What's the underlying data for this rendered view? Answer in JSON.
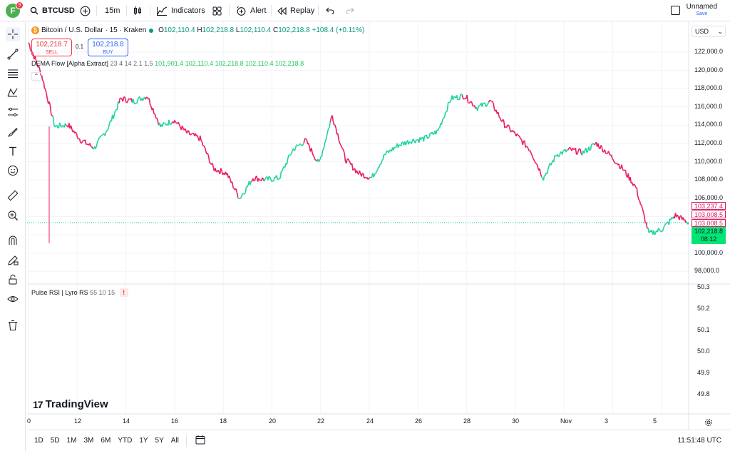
{
  "colors": {
    "bull": "#22d3a0",
    "bear": "#e91e63",
    "accent": "#2962ff",
    "current_price_bg": "#00e676",
    "sell": "#f23645"
  },
  "topbar": {
    "avatar_letter": "F",
    "avatar_badge": "9",
    "symbol": "BTCUSD",
    "interval": "15m",
    "indicators_label": "Indicators",
    "alert_label": "Alert",
    "replay_label": "Replay",
    "layout_name": "Unnamed",
    "save_label": "Save"
  },
  "legend": {
    "title": "Bitcoin / U.S. Dollar · 15 · Kraken",
    "o_label": "O",
    "o": "102,110.4",
    "h_label": "H",
    "h": "102,218.8",
    "l_label": "L",
    "l": "102,110.4",
    "c_label": "C",
    "c": "102,218.8",
    "change": "+108.4 (+0.11%)"
  },
  "trade": {
    "sell_price": "102,218.7",
    "sell_label": "SELL",
    "qty": "0.1",
    "buy_price": "102,218.8",
    "buy_label": "BUY"
  },
  "indicator": {
    "name": "DEMA Flow [Alpha Extract]",
    "params": "23 4 14 2.1 1.5",
    "values": [
      "101,901.4",
      "102,110.4",
      "102,218.8",
      "102,110.4",
      "102,218.8"
    ]
  },
  "currency": "USD",
  "price_axis": [
    "122,000.0",
    "120,000.0",
    "118,000.0",
    "116,000.0",
    "114,000.0",
    "112,000.0",
    "110,000.0",
    "108,000.0",
    "106,000.0",
    "104,000.0",
    "102,000.0",
    "100,000.0",
    "98,000.0"
  ],
  "price_tags": [
    "103,237.4",
    "103,008.5",
    "103,008.5"
  ],
  "current_price": "102,218.8",
  "countdown": "08:12",
  "rsi": {
    "name": "Pulse RSI",
    "sep": "|",
    "sub": "Lyro RS",
    "params": "55 10 15",
    "warn": "!",
    "axis": [
      "50.3",
      "50.2",
      "50.1",
      "50.0",
      "49.9",
      "49.8"
    ]
  },
  "time_axis": [
    "0",
    "12",
    "14",
    "16",
    "18",
    "20",
    "22",
    "24",
    "26",
    "28",
    "30",
    "Nov",
    "3",
    "5"
  ],
  "brand": "TradingView",
  "ranges": [
    "1D",
    "5D",
    "1M",
    "3M",
    "6M",
    "YTD",
    "1Y",
    "5Y",
    "All"
  ],
  "clock": "11:51:48 UTC",
  "chart_data": {
    "type": "line",
    "title": "Bitcoin / U.S. Dollar · 15 · Kraken",
    "xlabel": "",
    "ylabel": "",
    "ylim": [
      97000,
      123000
    ],
    "x": [
      "Oct 10",
      "Oct 10",
      "Oct 10",
      "Oct 11",
      "Oct 11",
      "Oct 12",
      "Oct 12",
      "Oct 13",
      "Oct 13",
      "Oct 14",
      "Oct 14",
      "Oct 15",
      "Oct 15",
      "Oct 16",
      "Oct 16",
      "Oct 17",
      "Oct 17",
      "Oct 18",
      "Oct 18",
      "Oct 19",
      "Oct 20",
      "Oct 20",
      "Oct 21",
      "Oct 21",
      "Oct 21",
      "Oct 22",
      "Oct 22",
      "Oct 23",
      "Oct 23",
      "Oct 24",
      "Oct 25",
      "Oct 26",
      "Oct 27",
      "Oct 27",
      "Oct 28",
      "Oct 28",
      "Oct 29",
      "Oct 29",
      "Oct 30",
      "Oct 30",
      "Oct 31",
      "Oct 31",
      "Nov 1",
      "Nov 2",
      "Nov 3",
      "Nov 3",
      "Nov 4",
      "Nov 4",
      "Nov 5",
      "Nov 5",
      "Nov 5"
    ],
    "series": [
      {
        "values": [
          121500,
          118000,
          112500,
          112700,
          111000,
          110200,
          112300,
          115500,
          115200,
          115800,
          112500,
          113200,
          111800,
          111200,
          108000,
          107500,
          104800,
          107000,
          106800,
          107000,
          110000,
          111000,
          108500,
          113700,
          109000,
          107500,
          107000,
          109500,
          110500,
          111000,
          111200,
          112000,
          115500,
          115800,
          114500,
          115200,
          112800,
          111500,
          110000,
          107000,
          109500,
          110000,
          109700,
          110700,
          109500,
          108000,
          106000,
          101000,
          101500,
          103000,
          102200
        ]
      }
    ],
    "spike_low": 100000,
    "grid": true,
    "legend": "top-left"
  }
}
